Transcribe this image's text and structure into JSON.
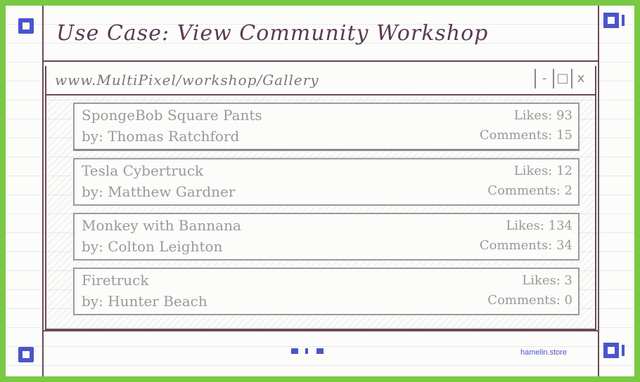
{
  "title": "Use Case: View Community Workshop",
  "browser": {
    "url": "www.MultiPixel/workshop/Gallery",
    "controls": [
      "-",
      "□",
      "x"
    ]
  },
  "items": [
    {
      "name": "SpongeBob Square Pants",
      "author": "by: Thomas Ratchford",
      "likes": "Likes: 93",
      "comments": "Comments: 15"
    },
    {
      "name": "Tesla Cybertruck",
      "author": "by: Matthew Gardner",
      "likes": "Likes: 12",
      "comments": "Comments: 2"
    },
    {
      "name": "Monkey with Bannana",
      "author": "by: Colton Leighton",
      "likes": "Likes: 134",
      "comments": "Comments: 34"
    },
    {
      "name": "Firetruck",
      "author": "by: Hunter Beach",
      "likes": "Likes: 3",
      "comments": "Comments: 0"
    }
  ],
  "footer": {
    "brand": "hamelin.store"
  },
  "colors": {
    "accent": "#4a55c9",
    "frame": "#7ac943"
  }
}
